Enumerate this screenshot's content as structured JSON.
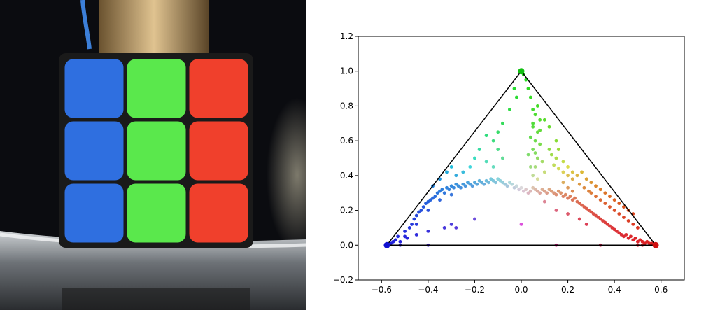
{
  "photo": {
    "subject": "rubiks-cube-photo",
    "colors": {
      "background": "#0b0c10",
      "blue": "#2f6fe0",
      "green": "#5ae84c",
      "red": "#f0402c",
      "cube_body": "#1a1a1a",
      "metal_rod": "#c9a978",
      "tray": "#9aa0a6"
    },
    "face_grid": [
      [
        "blue",
        "green",
        "red"
      ],
      [
        "blue",
        "green",
        "red"
      ],
      [
        "blue",
        "green",
        "red"
      ]
    ]
  },
  "chart_data": {
    "type": "scatter",
    "title": "",
    "xlabel": "",
    "ylabel": "",
    "xlim": [
      -0.7,
      0.7
    ],
    "ylim": [
      -0.2,
      1.2
    ],
    "xticks": [
      "−0.6",
      "−0.4",
      "−0.2",
      "0.0",
      "0.2",
      "0.4",
      "0.6"
    ],
    "yticks": [
      "−0.2",
      "0.0",
      "0.2",
      "0.4",
      "0.6",
      "0.8",
      "1.0",
      "1.2"
    ],
    "grid": false,
    "legend": "none",
    "triangle": {
      "vertices": [
        [
          -0.577,
          0.0
        ],
        [
          0.577,
          0.0
        ],
        [
          0.0,
          1.0
        ]
      ],
      "color": "#000000"
    },
    "vertex_markers": [
      {
        "x": -0.577,
        "y": 0.0,
        "color": "#1010d0"
      },
      {
        "x": 0.577,
        "y": 0.0,
        "color": "#d01010"
      },
      {
        "x": 0.0,
        "y": 1.0,
        "color": "#10c010"
      }
    ],
    "point_color_rule": "barycentric-rgb",
    "points": [
      [
        -0.56,
        0.01
      ],
      [
        -0.55,
        0.02
      ],
      [
        -0.54,
        0.03
      ],
      [
        -0.53,
        0.05
      ],
      [
        -0.52,
        0.02
      ],
      [
        -0.5,
        0.08
      ],
      [
        -0.49,
        0.04
      ],
      [
        -0.48,
        0.1
      ],
      [
        -0.47,
        0.12
      ],
      [
        -0.46,
        0.15
      ],
      [
        -0.45,
        0.17
      ],
      [
        -0.44,
        0.19
      ],
      [
        -0.43,
        0.2
      ],
      [
        -0.42,
        0.22
      ],
      [
        -0.41,
        0.24
      ],
      [
        -0.4,
        0.25
      ],
      [
        -0.4,
        0.2
      ],
      [
        -0.39,
        0.26
      ],
      [
        -0.38,
        0.27
      ],
      [
        -0.37,
        0.28
      ],
      [
        -0.36,
        0.3
      ],
      [
        -0.35,
        0.31
      ],
      [
        -0.35,
        0.26
      ],
      [
        -0.34,
        0.32
      ],
      [
        -0.33,
        0.3
      ],
      [
        -0.32,
        0.33
      ],
      [
        -0.31,
        0.32
      ],
      [
        -0.3,
        0.34
      ],
      [
        -0.3,
        0.29
      ],
      [
        -0.29,
        0.33
      ],
      [
        -0.28,
        0.35
      ],
      [
        -0.27,
        0.34
      ],
      [
        -0.26,
        0.33
      ],
      [
        -0.25,
        0.35
      ],
      [
        -0.24,
        0.34
      ],
      [
        -0.23,
        0.36
      ],
      [
        -0.22,
        0.35
      ],
      [
        -0.21,
        0.34
      ],
      [
        -0.2,
        0.36
      ],
      [
        -0.19,
        0.35
      ],
      [
        -0.18,
        0.37
      ],
      [
        -0.17,
        0.36
      ],
      [
        -0.16,
        0.35
      ],
      [
        -0.15,
        0.37
      ],
      [
        -0.14,
        0.36
      ],
      [
        -0.13,
        0.38
      ],
      [
        -0.12,
        0.37
      ],
      [
        -0.11,
        0.36
      ],
      [
        -0.1,
        0.38
      ],
      [
        -0.09,
        0.37
      ],
      [
        -0.08,
        0.36
      ],
      [
        -0.07,
        0.35
      ],
      [
        -0.06,
        0.34
      ],
      [
        -0.05,
        0.36
      ],
      [
        -0.04,
        0.35
      ],
      [
        -0.03,
        0.33
      ],
      [
        -0.02,
        0.34
      ],
      [
        -0.01,
        0.32
      ],
      [
        0.0,
        0.33
      ],
      [
        0.01,
        0.31
      ],
      [
        0.02,
        0.32
      ],
      [
        0.03,
        0.3
      ],
      [
        0.04,
        0.31
      ],
      [
        0.05,
        0.33
      ],
      [
        0.06,
        0.32
      ],
      [
        0.07,
        0.31
      ],
      [
        0.08,
        0.3
      ],
      [
        0.09,
        0.32
      ],
      [
        0.1,
        0.31
      ],
      [
        0.11,
        0.3
      ],
      [
        0.12,
        0.32
      ],
      [
        0.13,
        0.31
      ],
      [
        0.14,
        0.3
      ],
      [
        0.15,
        0.29
      ],
      [
        0.16,
        0.31
      ],
      [
        0.17,
        0.3
      ],
      [
        0.18,
        0.28
      ],
      [
        0.19,
        0.29
      ],
      [
        0.2,
        0.27
      ],
      [
        0.21,
        0.28
      ],
      [
        0.22,
        0.26
      ],
      [
        0.23,
        0.27
      ],
      [
        0.24,
        0.25
      ],
      [
        0.25,
        0.24
      ],
      [
        0.26,
        0.23
      ],
      [
        0.27,
        0.22
      ],
      [
        0.28,
        0.21
      ],
      [
        0.29,
        0.2
      ],
      [
        0.3,
        0.19
      ],
      [
        0.31,
        0.18
      ],
      [
        0.32,
        0.17
      ],
      [
        0.33,
        0.16
      ],
      [
        0.34,
        0.15
      ],
      [
        0.35,
        0.14
      ],
      [
        0.36,
        0.13
      ],
      [
        0.37,
        0.12
      ],
      [
        0.38,
        0.11
      ],
      [
        0.39,
        0.1
      ],
      [
        0.4,
        0.09
      ],
      [
        0.41,
        0.08
      ],
      [
        0.42,
        0.07
      ],
      [
        0.43,
        0.06
      ],
      [
        0.44,
        0.05
      ],
      [
        0.45,
        0.06
      ],
      [
        0.46,
        0.04
      ],
      [
        0.47,
        0.05
      ],
      [
        0.48,
        0.03
      ],
      [
        0.49,
        0.04
      ],
      [
        0.5,
        0.02
      ],
      [
        0.51,
        0.03
      ],
      [
        0.52,
        0.02
      ],
      [
        0.53,
        0.01
      ],
      [
        0.54,
        0.02
      ],
      [
        0.55,
        0.01
      ],
      [
        0.56,
        0.01
      ],
      [
        0.3,
        0.3
      ],
      [
        0.32,
        0.28
      ],
      [
        0.34,
        0.26
      ],
      [
        0.36,
        0.24
      ],
      [
        0.38,
        0.22
      ],
      [
        0.4,
        0.2
      ],
      [
        0.42,
        0.18
      ],
      [
        0.44,
        0.16
      ],
      [
        0.46,
        0.14
      ],
      [
        0.48,
        0.12
      ],
      [
        0.5,
        0.1
      ],
      [
        0.25,
        0.35
      ],
      [
        0.27,
        0.33
      ],
      [
        0.29,
        0.31
      ],
      [
        0.22,
        0.38
      ],
      [
        0.2,
        0.4
      ],
      [
        0.18,
        0.42
      ],
      [
        0.16,
        0.44
      ],
      [
        0.14,
        0.46
      ],
      [
        0.24,
        0.4
      ],
      [
        0.26,
        0.42
      ],
      [
        0.28,
        0.38
      ],
      [
        0.3,
        0.36
      ],
      [
        0.32,
        0.34
      ],
      [
        0.34,
        0.32
      ],
      [
        0.36,
        0.3
      ],
      [
        0.38,
        0.28
      ],
      [
        0.4,
        0.26
      ],
      [
        0.42,
        0.24
      ],
      [
        0.44,
        0.22
      ],
      [
        0.46,
        0.2
      ],
      [
        0.48,
        0.18
      ],
      [
        0.2,
        0.33
      ],
      [
        0.18,
        0.36
      ],
      [
        0.22,
        0.31
      ],
      [
        0.05,
        0.4
      ],
      [
        0.06,
        0.45
      ],
      [
        0.07,
        0.5
      ],
      [
        0.05,
        0.55
      ],
      [
        0.06,
        0.6
      ],
      [
        0.07,
        0.65
      ],
      [
        0.05,
        0.7
      ],
      [
        0.06,
        0.75
      ],
      [
        0.07,
        0.8
      ],
      [
        0.04,
        0.85
      ],
      [
        0.05,
        0.68
      ],
      [
        0.08,
        0.58
      ],
      [
        0.04,
        0.62
      ],
      [
        0.09,
        0.48
      ],
      [
        0.03,
        0.52
      ],
      [
        0.08,
        0.72
      ],
      [
        0.06,
        0.53
      ],
      [
        0.1,
        0.42
      ],
      [
        0.04,
        0.45
      ],
      [
        0.07,
        0.38
      ],
      [
        0.03,
        0.9
      ],
      [
        0.02,
        0.95
      ],
      [
        0.01,
        0.98
      ],
      [
        0.05,
        0.78
      ],
      [
        0.08,
        0.66
      ],
      [
        -0.1,
        0.55
      ],
      [
        -0.12,
        0.6
      ],
      [
        -0.15,
        0.63
      ],
      [
        -0.08,
        0.7
      ],
      [
        -0.05,
        0.78
      ],
      [
        -0.18,
        0.55
      ],
      [
        -0.2,
        0.5
      ],
      [
        -0.22,
        0.45
      ],
      [
        -0.25,
        0.42
      ],
      [
        -0.28,
        0.4
      ],
      [
        -0.3,
        0.45
      ],
      [
        -0.32,
        0.42
      ],
      [
        -0.35,
        0.38
      ],
      [
        -0.38,
        0.34
      ],
      [
        -0.15,
        0.48
      ],
      [
        -0.12,
        0.45
      ],
      [
        -0.08,
        0.5
      ],
      [
        -0.1,
        0.65
      ],
      [
        -0.02,
        0.85
      ],
      [
        -0.03,
        0.9
      ],
      [
        0.12,
        0.55
      ],
      [
        0.15,
        0.5
      ],
      [
        0.18,
        0.48
      ],
      [
        0.2,
        0.45
      ],
      [
        0.22,
        0.42
      ],
      [
        0.12,
        0.68
      ],
      [
        0.15,
        0.6
      ],
      [
        0.1,
        0.72
      ],
      [
        0.13,
        0.52
      ],
      [
        0.16,
        0.55
      ],
      [
        -0.3,
        0.12
      ],
      [
        -0.33,
        0.1
      ],
      [
        -0.4,
        0.08
      ],
      [
        -0.45,
        0.06
      ],
      [
        -0.5,
        0.05
      ],
      [
        -0.28,
        0.1
      ],
      [
        -0.2,
        0.15
      ],
      [
        0.1,
        0.25
      ],
      [
        0.15,
        0.2
      ],
      [
        0.2,
        0.18
      ],
      [
        0.25,
        0.15
      ],
      [
        0.28,
        0.12
      ],
      [
        -0.4,
        0.0
      ],
      [
        0.15,
        0.0
      ],
      [
        0.34,
        0.0
      ],
      [
        0.0,
        0.12
      ],
      [
        0.5,
        0.0
      ],
      [
        -0.52,
        0.0
      ],
      [
        0.52,
        0.0
      ],
      [
        -0.45,
        0.12
      ]
    ]
  }
}
